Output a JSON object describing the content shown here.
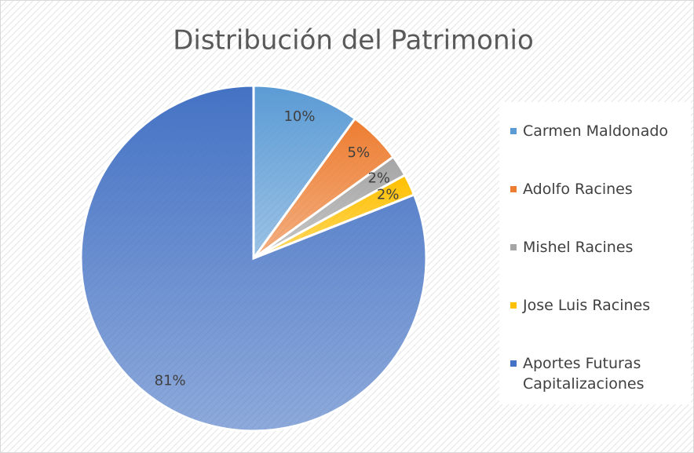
{
  "chart_data": {
    "type": "pie",
    "title": "Distribución del Patrimonio",
    "categories": [
      "Carmen Maldonado",
      "Adolfo Racines",
      "Mishel Racines",
      "Jose Luis Racines",
      "Aportes Futuras Capitalizaciones"
    ],
    "values": [
      10,
      5,
      2,
      2,
      81
    ],
    "value_labels": [
      "10%",
      "5%",
      "2%",
      "2%",
      "81%"
    ],
    "colors": [
      "#5b9bd5",
      "#ed7d31",
      "#a5a5a5",
      "#ffc000",
      "#4472c4"
    ],
    "legend": "right"
  }
}
